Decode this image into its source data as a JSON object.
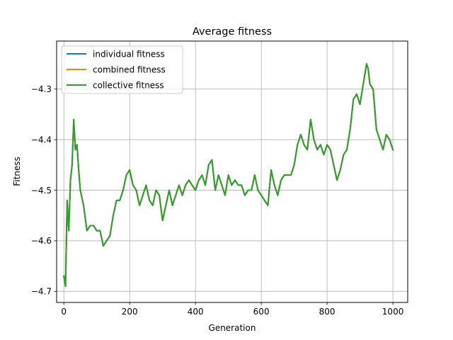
{
  "chart_data": {
    "type": "line",
    "title": "Average fitness",
    "xlabel": "Generation",
    "ylabel": "Fitness",
    "xlim": [
      -22,
      1045
    ],
    "ylim": [
      -4.722,
      -4.205
    ],
    "xticks": [
      0,
      200,
      400,
      600,
      800,
      1000
    ],
    "yticks": [
      -4.7,
      -4.6,
      -4.5,
      -4.4,
      -4.3
    ],
    "xtick_labels": [
      "0",
      "200",
      "400",
      "600",
      "800",
      "1000"
    ],
    "ytick_labels": [
      "−4.7",
      "−4.6",
      "−4.5",
      "−4.4",
      "−4.3"
    ],
    "grid": true,
    "legend_position": "top-left",
    "series": [
      {
        "name": "individual fitness",
        "color": "#1f77b4",
        "x": [
          0,
          5,
          10,
          15,
          20,
          25,
          30,
          35,
          40,
          45,
          50,
          60,
          70,
          80,
          90,
          100,
          110,
          120,
          130,
          140,
          150,
          160,
          170,
          180,
          190,
          200,
          210,
          220,
          230,
          240,
          250,
          260,
          270,
          280,
          290,
          300,
          310,
          320,
          330,
          340,
          350,
          360,
          370,
          380,
          390,
          400,
          410,
          420,
          430,
          440,
          450,
          460,
          470,
          480,
          490,
          500,
          510,
          520,
          530,
          540,
          550,
          560,
          570,
          580,
          590,
          600,
          610,
          620,
          630,
          640,
          650,
          660,
          670,
          680,
          690,
          700,
          710,
          720,
          730,
          740,
          750,
          760,
          770,
          780,
          790,
          800,
          810,
          820,
          830,
          840,
          850,
          860,
          870,
          880,
          890,
          900,
          910,
          920,
          925,
          930,
          940,
          950,
          960,
          970,
          980,
          990,
          1000
        ],
        "y": [
          -4.67,
          -4.69,
          -4.52,
          -4.58,
          -4.48,
          -4.45,
          -4.36,
          -4.42,
          -4.41,
          -4.46,
          -4.5,
          -4.53,
          -4.58,
          -4.57,
          -4.57,
          -4.58,
          -4.58,
          -4.61,
          -4.6,
          -4.59,
          -4.55,
          -4.52,
          -4.52,
          -4.5,
          -4.47,
          -4.46,
          -4.49,
          -4.5,
          -4.53,
          -4.51,
          -4.49,
          -4.52,
          -4.53,
          -4.5,
          -4.51,
          -4.56,
          -4.53,
          -4.5,
          -4.53,
          -4.51,
          -4.49,
          -4.51,
          -4.49,
          -4.48,
          -4.49,
          -4.5,
          -4.48,
          -4.47,
          -4.49,
          -4.45,
          -4.44,
          -4.5,
          -4.47,
          -4.49,
          -4.51,
          -4.47,
          -4.49,
          -4.48,
          -4.49,
          -4.49,
          -4.51,
          -4.5,
          -4.5,
          -4.47,
          -4.5,
          -4.51,
          -4.52,
          -4.53,
          -4.46,
          -4.49,
          -4.51,
          -4.48,
          -4.47,
          -4.47,
          -4.47,
          -4.45,
          -4.41,
          -4.39,
          -4.41,
          -4.42,
          -4.36,
          -4.4,
          -4.42,
          -4.41,
          -4.43,
          -4.41,
          -4.42,
          -4.45,
          -4.48,
          -4.46,
          -4.43,
          -4.42,
          -4.38,
          -4.32,
          -4.31,
          -4.33,
          -4.29,
          -4.25,
          -4.26,
          -4.29,
          -4.3,
          -4.38,
          -4.4,
          -4.42,
          -4.39,
          -4.4,
          -4.42
        ]
      },
      {
        "name": "combined fitness",
        "color": "#ff7f0e",
        "x": [
          0,
          5,
          10,
          15,
          20,
          25,
          30,
          35,
          40,
          45,
          50,
          60,
          70,
          80,
          90,
          100,
          110,
          120,
          130,
          140,
          150,
          160,
          170,
          180,
          190,
          200,
          210,
          220,
          230,
          240,
          250,
          260,
          270,
          280,
          290,
          300,
          310,
          320,
          330,
          340,
          350,
          360,
          370,
          380,
          390,
          400,
          410,
          420,
          430,
          440,
          450,
          460,
          470,
          480,
          490,
          500,
          510,
          520,
          530,
          540,
          550,
          560,
          570,
          580,
          590,
          600,
          610,
          620,
          630,
          640,
          650,
          660,
          670,
          680,
          690,
          700,
          710,
          720,
          730,
          740,
          750,
          760,
          770,
          780,
          790,
          800,
          810,
          820,
          830,
          840,
          850,
          860,
          870,
          880,
          890,
          900,
          910,
          920,
          925,
          930,
          940,
          950,
          960,
          970,
          980,
          990,
          1000
        ],
        "y": [
          -4.67,
          -4.69,
          -4.52,
          -4.58,
          -4.48,
          -4.45,
          -4.36,
          -4.42,
          -4.41,
          -4.46,
          -4.5,
          -4.53,
          -4.58,
          -4.57,
          -4.57,
          -4.58,
          -4.58,
          -4.61,
          -4.6,
          -4.59,
          -4.55,
          -4.52,
          -4.52,
          -4.5,
          -4.47,
          -4.46,
          -4.49,
          -4.5,
          -4.53,
          -4.51,
          -4.49,
          -4.52,
          -4.53,
          -4.5,
          -4.51,
          -4.56,
          -4.53,
          -4.5,
          -4.53,
          -4.51,
          -4.49,
          -4.51,
          -4.49,
          -4.48,
          -4.49,
          -4.5,
          -4.48,
          -4.47,
          -4.49,
          -4.45,
          -4.44,
          -4.5,
          -4.47,
          -4.49,
          -4.51,
          -4.47,
          -4.49,
          -4.48,
          -4.49,
          -4.49,
          -4.51,
          -4.5,
          -4.5,
          -4.47,
          -4.5,
          -4.51,
          -4.52,
          -4.53,
          -4.46,
          -4.49,
          -4.51,
          -4.48,
          -4.47,
          -4.47,
          -4.47,
          -4.45,
          -4.41,
          -4.39,
          -4.41,
          -4.42,
          -4.36,
          -4.4,
          -4.42,
          -4.41,
          -4.43,
          -4.41,
          -4.42,
          -4.45,
          -4.48,
          -4.46,
          -4.43,
          -4.42,
          -4.38,
          -4.32,
          -4.31,
          -4.33,
          -4.29,
          -4.25,
          -4.26,
          -4.29,
          -4.3,
          -4.38,
          -4.4,
          -4.42,
          -4.39,
          -4.4,
          -4.42
        ]
      },
      {
        "name": "collective fitness",
        "color": "#2ca02c",
        "x": [
          0,
          5,
          10,
          15,
          20,
          25,
          30,
          35,
          40,
          45,
          50,
          60,
          70,
          80,
          90,
          100,
          110,
          120,
          130,
          140,
          150,
          160,
          170,
          180,
          190,
          200,
          210,
          220,
          230,
          240,
          250,
          260,
          270,
          280,
          290,
          300,
          310,
          320,
          330,
          340,
          350,
          360,
          370,
          380,
          390,
          400,
          410,
          420,
          430,
          440,
          450,
          460,
          470,
          480,
          490,
          500,
          510,
          520,
          530,
          540,
          550,
          560,
          570,
          580,
          590,
          600,
          610,
          620,
          630,
          640,
          650,
          660,
          670,
          680,
          690,
          700,
          710,
          720,
          730,
          740,
          750,
          760,
          770,
          780,
          790,
          800,
          810,
          820,
          830,
          840,
          850,
          860,
          870,
          880,
          890,
          900,
          910,
          920,
          925,
          930,
          940,
          950,
          960,
          970,
          980,
          990,
          1000
        ],
        "y": [
          -4.67,
          -4.69,
          -4.52,
          -4.58,
          -4.48,
          -4.45,
          -4.36,
          -4.42,
          -4.41,
          -4.46,
          -4.5,
          -4.53,
          -4.58,
          -4.57,
          -4.57,
          -4.58,
          -4.58,
          -4.61,
          -4.6,
          -4.59,
          -4.55,
          -4.52,
          -4.52,
          -4.5,
          -4.47,
          -4.46,
          -4.49,
          -4.5,
          -4.53,
          -4.51,
          -4.49,
          -4.52,
          -4.53,
          -4.5,
          -4.51,
          -4.56,
          -4.53,
          -4.5,
          -4.53,
          -4.51,
          -4.49,
          -4.51,
          -4.49,
          -4.48,
          -4.49,
          -4.5,
          -4.48,
          -4.47,
          -4.49,
          -4.45,
          -4.44,
          -4.5,
          -4.47,
          -4.49,
          -4.51,
          -4.47,
          -4.49,
          -4.48,
          -4.49,
          -4.49,
          -4.51,
          -4.5,
          -4.5,
          -4.47,
          -4.5,
          -4.51,
          -4.52,
          -4.53,
          -4.46,
          -4.49,
          -4.51,
          -4.48,
          -4.47,
          -4.47,
          -4.47,
          -4.45,
          -4.41,
          -4.39,
          -4.41,
          -4.42,
          -4.36,
          -4.4,
          -4.42,
          -4.41,
          -4.43,
          -4.41,
          -4.42,
          -4.45,
          -4.48,
          -4.46,
          -4.43,
          -4.42,
          -4.38,
          -4.32,
          -4.31,
          -4.33,
          -4.29,
          -4.25,
          -4.26,
          -4.29,
          -4.3,
          -4.38,
          -4.4,
          -4.42,
          -4.39,
          -4.4,
          -4.42
        ]
      }
    ]
  }
}
